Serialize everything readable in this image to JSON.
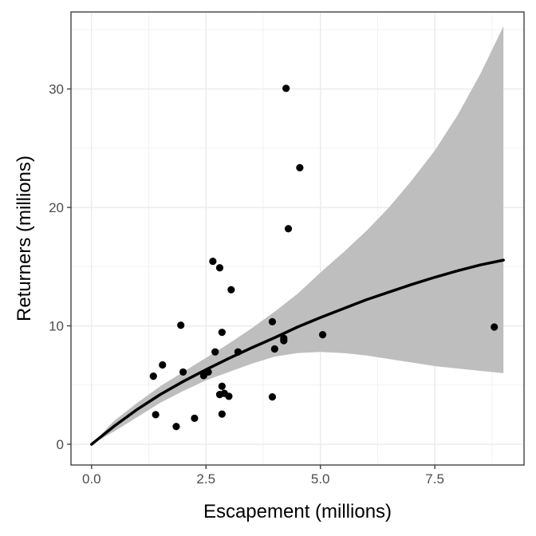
{
  "chart_data": {
    "type": "scatter",
    "title": "",
    "xlabel": "Escapement (millions)",
    "ylabel": "Returners (millions)",
    "xlim": [
      -0.45,
      9.45
    ],
    "ylim": [
      -1.75,
      36.5
    ],
    "x_ticks": [
      0.0,
      2.5,
      5.0,
      7.5
    ],
    "x_tick_labels": [
      "0.0",
      "2.5",
      "5.0",
      "7.5"
    ],
    "y_ticks": [
      0,
      10,
      20,
      30
    ],
    "y_tick_labels": [
      "0",
      "10",
      "20",
      "30"
    ],
    "x_minor_ticks": [
      1.25,
      3.75,
      6.25,
      8.75
    ],
    "y_minor_ticks": [
      5,
      15,
      25,
      35
    ],
    "grid": true,
    "theme": "bw",
    "series": [
      {
        "kind": "points",
        "color": "#000000",
        "points": [
          {
            "x": 1.35,
            "y": 5.75
          },
          {
            "x": 1.4,
            "y": 2.5
          },
          {
            "x": 1.55,
            "y": 6.7
          },
          {
            "x": 1.85,
            "y": 1.5
          },
          {
            "x": 1.95,
            "y": 10.05
          },
          {
            "x": 2.0,
            "y": 6.1
          },
          {
            "x": 2.25,
            "y": 2.2
          },
          {
            "x": 2.45,
            "y": 5.8
          },
          {
            "x": 2.55,
            "y": 6.1
          },
          {
            "x": 2.65,
            "y": 15.45
          },
          {
            "x": 2.7,
            "y": 7.8
          },
          {
            "x": 2.8,
            "y": 14.9
          },
          {
            "x": 2.8,
            "y": 4.2
          },
          {
            "x": 2.85,
            "y": 4.9
          },
          {
            "x": 2.85,
            "y": 2.55
          },
          {
            "x": 2.85,
            "y": 9.45
          },
          {
            "x": 2.9,
            "y": 4.3
          },
          {
            "x": 3.0,
            "y": 4.05
          },
          {
            "x": 3.05,
            "y": 13.05
          },
          {
            "x": 3.2,
            "y": 7.8
          },
          {
            "x": 3.95,
            "y": 10.35
          },
          {
            "x": 3.95,
            "y": 4.0
          },
          {
            "x": 4.0,
            "y": 8.05
          },
          {
            "x": 4.2,
            "y": 8.75
          },
          {
            "x": 4.2,
            "y": 8.95
          },
          {
            "x": 4.25,
            "y": 30.05
          },
          {
            "x": 4.3,
            "y": 18.2
          },
          {
            "x": 4.55,
            "y": 23.35
          },
          {
            "x": 5.05,
            "y": 9.25
          },
          {
            "x": 8.8,
            "y": 9.9
          }
        ]
      },
      {
        "kind": "fit-line",
        "color": "#000000",
        "x": [
          0.0,
          0.5,
          1.0,
          1.5,
          2.0,
          2.5,
          3.0,
          3.5,
          4.0,
          4.5,
          5.0,
          5.5,
          6.0,
          6.5,
          7.0,
          7.5,
          8.0,
          8.5,
          9.0
        ],
        "y": [
          0.0,
          1.55,
          2.95,
          4.2,
          5.3,
          6.3,
          7.25,
          8.15,
          9.0,
          9.9,
          10.7,
          11.45,
          12.2,
          12.85,
          13.5,
          14.1,
          14.65,
          15.15,
          15.55
        ]
      },
      {
        "kind": "confidence-band",
        "color": "#bebebe",
        "x": [
          0.0,
          0.5,
          1.0,
          1.5,
          2.0,
          2.5,
          3.0,
          3.5,
          4.0,
          4.5,
          5.0,
          5.5,
          6.0,
          6.5,
          7.0,
          7.5,
          8.0,
          8.5,
          9.0
        ],
        "upper": [
          0.0,
          2.0,
          3.5,
          4.9,
          6.1,
          7.3,
          8.5,
          9.8,
          11.2,
          12.7,
          14.5,
          16.2,
          18.0,
          20.0,
          22.3,
          24.8,
          27.8,
          31.3,
          35.3
        ],
        "lower": [
          0.0,
          1.1,
          2.3,
          3.5,
          4.5,
          5.4,
          6.1,
          6.8,
          7.4,
          7.7,
          7.8,
          7.7,
          7.5,
          7.2,
          6.9,
          6.6,
          6.4,
          6.2,
          6.0
        ]
      }
    ]
  }
}
